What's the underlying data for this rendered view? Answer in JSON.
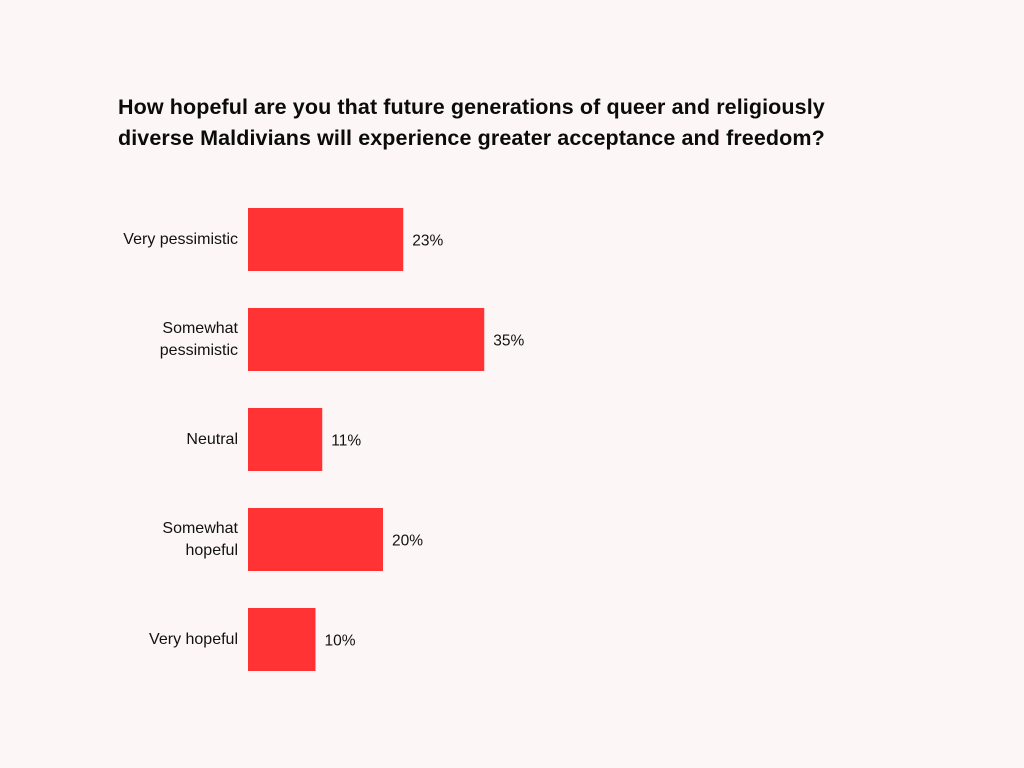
{
  "chart_data": {
    "type": "bar",
    "orientation": "horizontal",
    "title_lines": [
      "How hopeful are you that future generations of queer and religiously",
      "diverse Maldivians will experience greater acceptance and freedom?"
    ],
    "categories": [
      [
        "Very pessimistic"
      ],
      [
        "Somewhat",
        "pessimistic"
      ],
      [
        "Neutral"
      ],
      [
        "Somewhat",
        "hopeful"
      ],
      [
        "Very hopeful"
      ]
    ],
    "values": [
      23,
      35,
      11,
      20,
      10
    ],
    "value_labels": [
      "23%",
      "35%",
      "11%",
      "20%",
      "10%"
    ],
    "xlabel": "",
    "ylabel": "",
    "xlim": [
      0,
      100
    ],
    "grid": false,
    "bar_color": "#ff3333"
  }
}
